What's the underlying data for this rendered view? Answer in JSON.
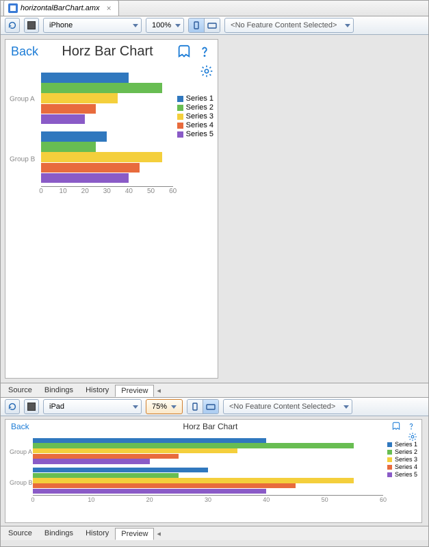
{
  "file_tab": {
    "name": "horizontalBarChart.amx",
    "close": "×"
  },
  "panes": [
    {
      "id": "phone",
      "toolbar": {
        "device": "iPhone",
        "zoom": "100%",
        "zoom_highlight": false,
        "view_active": 0,
        "feature": "<No Feature Content Selected>"
      },
      "screen": {
        "back": "Back",
        "title": "Horz Bar Chart"
      },
      "chart": {
        "type": "horizontal_bar",
        "xlim": [
          0,
          60
        ],
        "xtick_step": 10,
        "xticks": [
          "0",
          "10",
          "20",
          "30",
          "40",
          "50",
          "60"
        ],
        "groups": [
          "Group A",
          "Group B"
        ],
        "series": [
          "Series 1",
          "Series 2",
          "Series 3",
          "Series 4",
          "Series 5"
        ],
        "colors": [
          "#3078be",
          "#68bd52",
          "#f4cf3c",
          "#e86b3d",
          "#8a5bc7"
        ],
        "values": {
          "Group A": [
            40,
            55,
            35,
            25,
            20
          ],
          "Group B": [
            30,
            25,
            55,
            45,
            40
          ]
        },
        "axis_color": "#888888",
        "label_color": "#888888",
        "label_fontsize": 10,
        "bg": "#ffffff"
      },
      "bottom_tabs": {
        "items": [
          "Source",
          "Bindings",
          "History",
          "Preview"
        ],
        "active": 3
      }
    },
    {
      "id": "pad",
      "toolbar": {
        "device": "iPad",
        "zoom": "75%",
        "zoom_highlight": true,
        "view_active": 1,
        "feature": "<No Feature Content Selected>"
      },
      "screen": {
        "back": "Back",
        "title": "Horz Bar Chart"
      },
      "chart": {
        "type": "horizontal_bar",
        "xlim": [
          0,
          60
        ],
        "xtick_step": 10,
        "xticks": [
          "0",
          "10",
          "20",
          "30",
          "40",
          "50",
          "60"
        ],
        "groups": [
          "Group A",
          "Group B"
        ],
        "series": [
          "Series 1",
          "Series 2",
          "Series 3",
          "Series 4",
          "Series 5"
        ],
        "colors": [
          "#3078be",
          "#68bd52",
          "#f4cf3c",
          "#e86b3d",
          "#8a5bc7"
        ],
        "values": {
          "Group A": [
            40,
            55,
            35,
            25,
            20
          ],
          "Group B": [
            30,
            25,
            55,
            45,
            40
          ]
        },
        "axis_color": "#888888",
        "label_color": "#888888",
        "label_fontsize": 9,
        "bg": "#ffffff"
      },
      "bottom_tabs": {
        "items": [
          "Source",
          "Bindings",
          "History",
          "Preview"
        ],
        "active": 3
      }
    }
  ]
}
